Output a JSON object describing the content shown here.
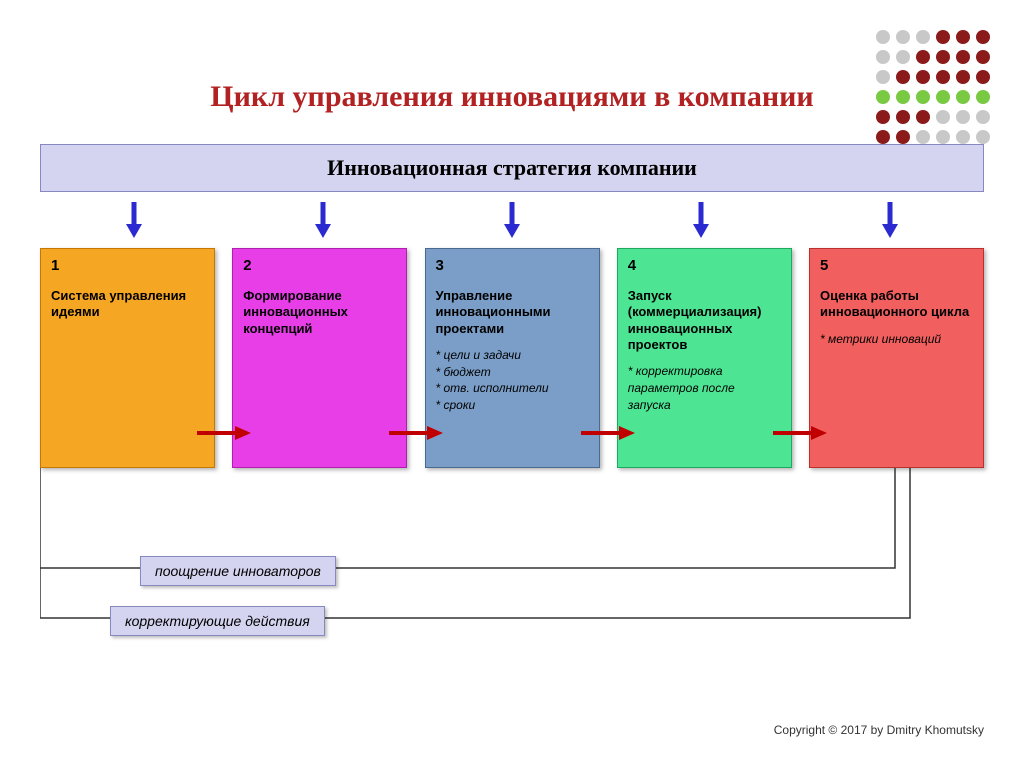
{
  "title": "Цикл управления инновациями в компании",
  "strategy_label": "Инновационная стратегия компании",
  "stages": [
    {
      "num": "1",
      "title": "Система управления идеями",
      "bullets": "",
      "bg": "#f5a623",
      "border": "#c77800"
    },
    {
      "num": "2",
      "title": "Формирование инновационных концепций",
      "bullets": "",
      "bg": "#e83ee8",
      "border": "#b020b0"
    },
    {
      "num": "3",
      "title": "Управление инновационными проектами",
      "bullets": "* цели и задачи\n* бюджет\n* отв. исполнители\n* сроки",
      "bg": "#7a9ec7",
      "border": "#4a6a90"
    },
    {
      "num": "4",
      "title": "Запуск (коммерциализация) инновационных проектов",
      "bullets": "* корректировка параметров  после запуска",
      "bg": "#4de594",
      "border": "#1fa860"
    },
    {
      "num": "5",
      "title": "Оценка работы инновационного цикла",
      "bullets": " * метрики инноваций",
      "bg": "#f15f5f",
      "border": "#b83030"
    }
  ],
  "arrow_down_color": "#2a2ad0",
  "h_arrow_color": "#c00000",
  "feedback1": "поощрение инноваторов",
  "feedback2": "корректирующие действия",
  "copyright": "Copyright © 2017 by Dmitry Khomutsky",
  "dot_grid": {
    "colors": {
      "maroon": "#8b1a1a",
      "green": "#7ac943",
      "gray": "#c8c8c8"
    },
    "pattern": [
      [
        "gray",
        "gray",
        "gray",
        "maroon",
        "maroon",
        "maroon"
      ],
      [
        "gray",
        "gray",
        "maroon",
        "maroon",
        "maroon",
        "maroon"
      ],
      [
        "gray",
        "maroon",
        "maroon",
        "maroon",
        "maroon",
        "maroon"
      ],
      [
        "green",
        "green",
        "green",
        "green",
        "green",
        "green"
      ],
      [
        "maroon",
        "maroon",
        "maroon",
        "gray",
        "gray",
        "gray"
      ],
      [
        "maroon",
        "maroon",
        "gray",
        "gray",
        "gray",
        "gray"
      ]
    ]
  }
}
